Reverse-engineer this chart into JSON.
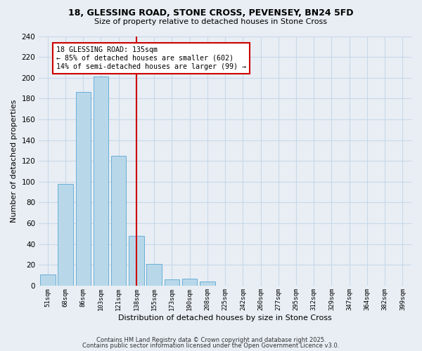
{
  "title1": "18, GLESSING ROAD, STONE CROSS, PEVENSEY, BN24 5FD",
  "title2": "Size of property relative to detached houses in Stone Cross",
  "xlabel": "Distribution of detached houses by size in Stone Cross",
  "ylabel": "Number of detached properties",
  "bin_labels": [
    "51sqm",
    "68sqm",
    "86sqm",
    "103sqm",
    "121sqm",
    "138sqm",
    "155sqm",
    "173sqm",
    "190sqm",
    "208sqm",
    "225sqm",
    "242sqm",
    "260sqm",
    "277sqm",
    "295sqm",
    "312sqm",
    "329sqm",
    "347sqm",
    "364sqm",
    "382sqm",
    "399sqm"
  ],
  "bar_heights": [
    11,
    98,
    186,
    201,
    125,
    48,
    21,
    6,
    7,
    4,
    0,
    0,
    0,
    0,
    0,
    0,
    0,
    0,
    0,
    0,
    0
  ],
  "bar_color": "#b8d8ea",
  "bar_edge_color": "#6aaed6",
  "vline_x_idx": 5,
  "vline_color": "#cc0000",
  "annotation_title": "18 GLESSING ROAD: 135sqm",
  "annotation_line1": "← 85% of detached houses are smaller (602)",
  "annotation_line2": "14% of semi-detached houses are larger (99) →",
  "box_facecolor": "#ffffff",
  "box_edgecolor": "#cc0000",
  "ylim": [
    0,
    240
  ],
  "yticks": [
    0,
    20,
    40,
    60,
    80,
    100,
    120,
    140,
    160,
    180,
    200,
    220,
    240
  ],
  "footer1": "Contains HM Land Registry data © Crown copyright and database right 2025.",
  "footer2": "Contains public sector information licensed under the Open Government Licence v3.0.",
  "bg_color": "#e8eef4",
  "grid_color": "#c8d8e8",
  "title1_fontsize": 9,
  "title2_fontsize": 8,
  "footer_fontsize": 6
}
